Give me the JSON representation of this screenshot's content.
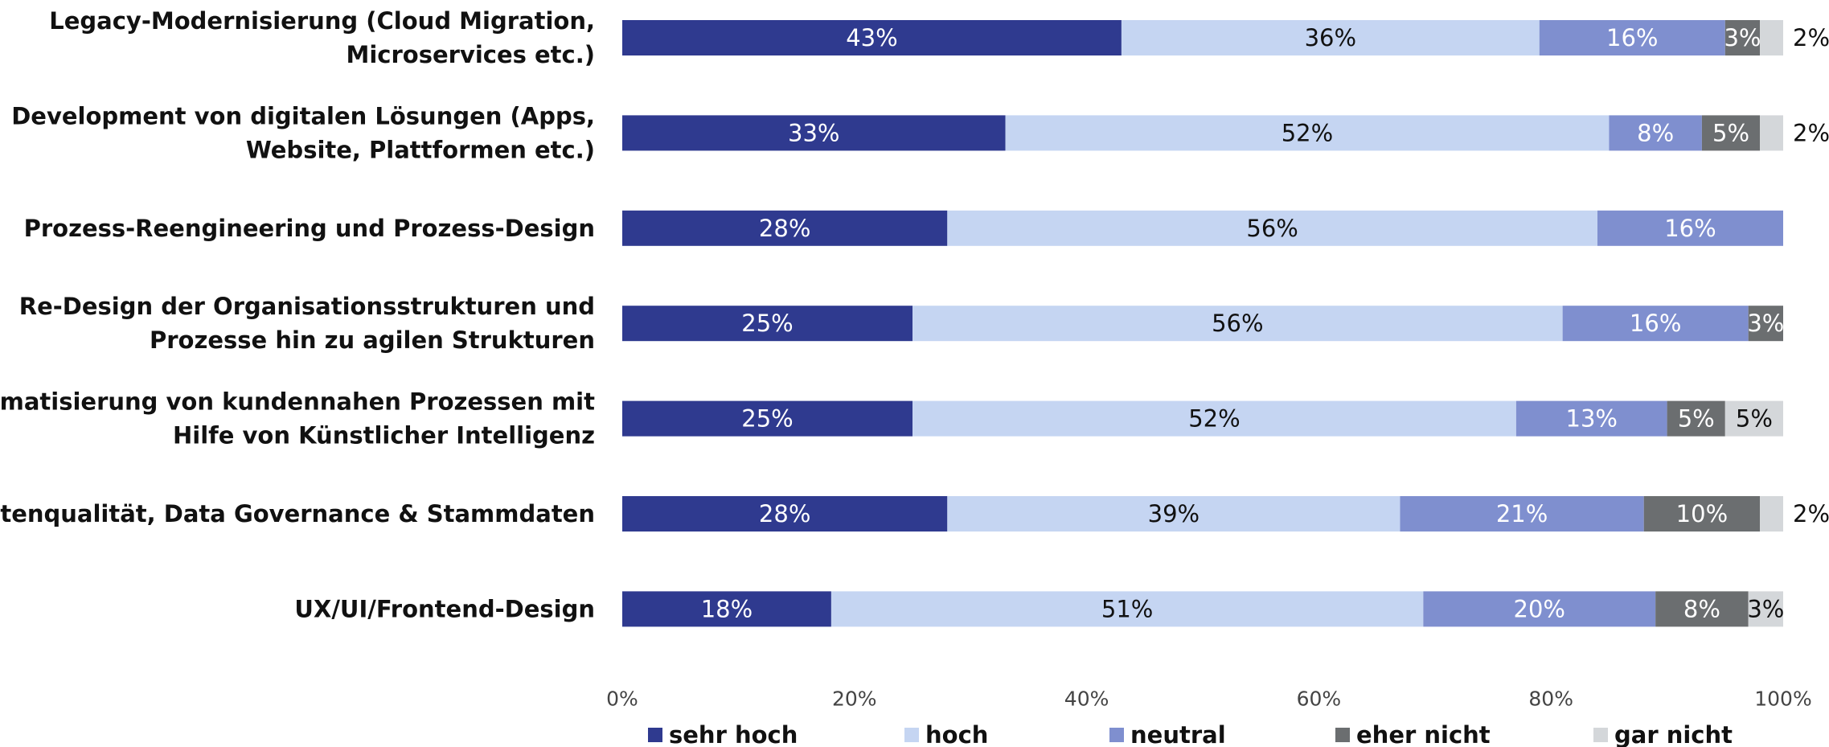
{
  "chart_data": {
    "type": "bar",
    "orientation": "horizontal",
    "stacked": true,
    "categories": [
      [
        "Legacy-Modernisierung (Cloud Migration,",
        "Microservices etc.)"
      ],
      [
        "Development von digitalen Lösungen (Apps,",
        "Website, Plattformen etc.)"
      ],
      [
        "Prozess-Reengineering und Prozess-Design"
      ],
      [
        "Re-Design der Organisationsstrukturen und",
        "Prozesse hin zu agilen Strukturen"
      ],
      [
        "Automatisierung von kundennahen Prozessen mit",
        "Hilfe von Künstlicher Intelligenz"
      ],
      [
        "Datenqualität, Data Governance & Stammdaten"
      ],
      [
        "UX/UI/Frontend-Design"
      ]
    ],
    "series": [
      {
        "name": "sehr hoch",
        "color": "#2f3a8f",
        "text_color": "#ffffff",
        "values": [
          43,
          33,
          28,
          25,
          25,
          28,
          18
        ]
      },
      {
        "name": "hoch",
        "color": "#c5d5f2",
        "text_color": "#111111",
        "values": [
          36,
          52,
          56,
          56,
          52,
          39,
          51
        ]
      },
      {
        "name": "neutral",
        "color": "#7f8fcf",
        "text_color": "#ffffff",
        "values": [
          16,
          8,
          16,
          16,
          13,
          21,
          20
        ]
      },
      {
        "name": "eher nicht",
        "color": "#6b6e70",
        "text_color": "#ffffff",
        "values": [
          3,
          5,
          0,
          3,
          5,
          10,
          8
        ]
      },
      {
        "name": "gar nicht",
        "color": "#d4d7da",
        "text_color": "#111111",
        "values": [
          2,
          2,
          0,
          0,
          5,
          2,
          3
        ]
      }
    ],
    "xlim": [
      0,
      100
    ],
    "xticks": [
      0,
      20,
      40,
      60,
      80,
      100
    ],
    "xtick_labels": [
      "0%",
      "20%",
      "40%",
      "60%",
      "80%",
      "100%"
    ],
    "value_suffix": "%",
    "legend_position": "bottom",
    "grid": false,
    "title": "",
    "xlabel": "",
    "ylabel": ""
  }
}
